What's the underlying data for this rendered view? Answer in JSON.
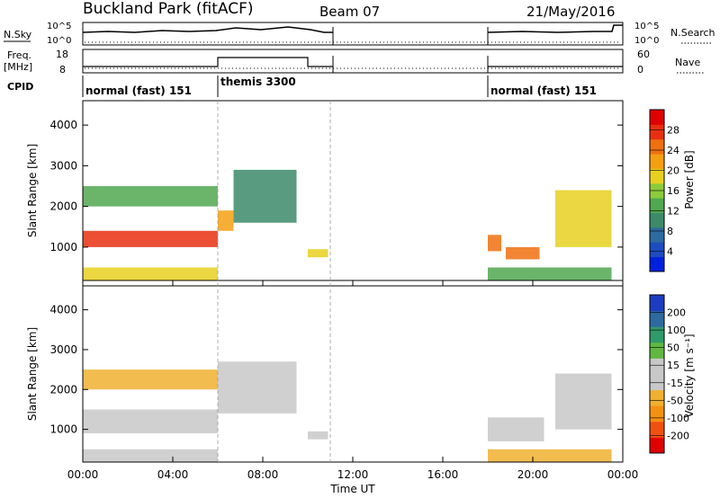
{
  "header": {
    "title": "Buckland Park (fitACF)",
    "beam": "Beam 07",
    "date": "21/May/2016"
  },
  "noise_panel": {
    "left_label": "N.Sky",
    "right_label": "N.Search",
    "left_ticks": [
      "10^5",
      "10^0"
    ],
    "right_ticks": [
      "10^5",
      "10^0"
    ]
  },
  "freq_panel": {
    "left_label_1": "Freq.",
    "left_label_2": "[MHz]",
    "right_label": "Nave",
    "left_ticks": [
      "18",
      "8"
    ],
    "right_ticks": [
      "60",
      "0"
    ]
  },
  "cpid_panel": {
    "label": "CPID",
    "segments": [
      {
        "label": "normal (fast) 151",
        "start_hour": 0,
        "end_hour": 6
      },
      {
        "label": "themis 3300",
        "start_hour": 6,
        "end_hour": 11
      },
      {
        "label": "normal (fast) 151",
        "start_hour": 18,
        "end_hour": 24
      }
    ]
  },
  "x_axis": {
    "label": "Time UT",
    "range_hours": [
      0,
      24
    ],
    "ticks": [
      "00:00",
      "04:00",
      "08:00",
      "12:00",
      "16:00",
      "20:00",
      "00:00"
    ]
  },
  "chart_data": [
    {
      "type": "heatmap",
      "name": "power",
      "ylabel": "Slant Range [km]",
      "yticks": [
        1000,
        2000,
        3000,
        4000
      ],
      "ylim": [
        180,
        4600
      ],
      "colorbar": {
        "label": "Power [dB]",
        "range": [
          0,
          32
        ],
        "ticks": [
          "28",
          "24",
          "20",
          "16",
          "12",
          "8",
          "4"
        ],
        "colors": [
          "#0020e0",
          "#1e4cc0",
          "#2d6aa0",
          "#3c8a6a",
          "#50a850",
          "#8ccc3a",
          "#e8d020",
          "#f5a010",
          "#f07010",
          "#e83010",
          "#e00000"
        ]
      },
      "bands": [
        {
          "t0": 0.0,
          "t1": 6.0,
          "r0": 1000,
          "r1": 1400,
          "level": 28
        },
        {
          "t0": 0.0,
          "t1": 6.0,
          "r0": 2000,
          "r1": 2500,
          "level": 12
        },
        {
          "t0": 0.0,
          "t1": 6.0,
          "r0": 180,
          "r1": 500,
          "level": 20
        },
        {
          "t0": 6.0,
          "t1": 6.7,
          "r0": 1400,
          "r1": 1900,
          "level": 22
        },
        {
          "t0": 6.7,
          "t1": 9.5,
          "r0": 1600,
          "r1": 2900,
          "level": 10
        },
        {
          "t0": 10.0,
          "t1": 10.9,
          "r0": 750,
          "r1": 950,
          "level": 18
        },
        {
          "t0": 18.0,
          "t1": 18.6,
          "r0": 900,
          "r1": 1300,
          "level": 26
        },
        {
          "t0": 18.8,
          "t1": 20.3,
          "r0": 700,
          "r1": 1000,
          "level": 24
        },
        {
          "t0": 18.0,
          "t1": 23.5,
          "r0": 180,
          "r1": 500,
          "level": 14
        },
        {
          "t0": 21.0,
          "t1": 23.5,
          "r0": 1000,
          "r1": 2400,
          "level": 20
        }
      ]
    },
    {
      "type": "heatmap",
      "name": "velocity",
      "ylabel": "Slant Range [km]",
      "yticks": [
        1000,
        2000,
        3000,
        4000
      ],
      "ylim": [
        180,
        4600
      ],
      "colorbar": {
        "label": "Velocity [m s⁻¹]",
        "range": [
          -250,
          250
        ],
        "ticks": [
          "200",
          "100",
          "50",
          "15",
          "-15",
          "-50",
          "-100",
          "-200"
        ],
        "colors": [
          "#e00000",
          "#f05010",
          "#f59010",
          "#f0b030",
          "#c8c8c8",
          "#c8c8c8",
          "#60b840",
          "#2f9a6a",
          "#2d6aa0",
          "#1e3cc0"
        ]
      },
      "bands": [
        {
          "t0": 0.0,
          "t1": 6.0,
          "r0": 900,
          "r1": 1500,
          "level": 0
        },
        {
          "t0": 0.0,
          "t1": 6.0,
          "r0": 2000,
          "r1": 2500,
          "level": -60
        },
        {
          "t0": 0.0,
          "t1": 6.0,
          "r0": 180,
          "r1": 500,
          "level": -30
        },
        {
          "t0": 6.0,
          "t1": 9.5,
          "r0": 1400,
          "r1": 2700,
          "level": -5
        },
        {
          "t0": 10.0,
          "t1": 10.9,
          "r0": 750,
          "r1": 950,
          "level": 45
        },
        {
          "t0": 18.0,
          "t1": 20.5,
          "r0": 700,
          "r1": 1300,
          "level": -45
        },
        {
          "t0": 18.0,
          "t1": 23.5,
          "r0": 180,
          "r1": 500,
          "level": -80
        },
        {
          "t0": 21.0,
          "t1": 23.5,
          "r0": 1000,
          "r1": 2400,
          "level": 0
        }
      ]
    }
  ]
}
